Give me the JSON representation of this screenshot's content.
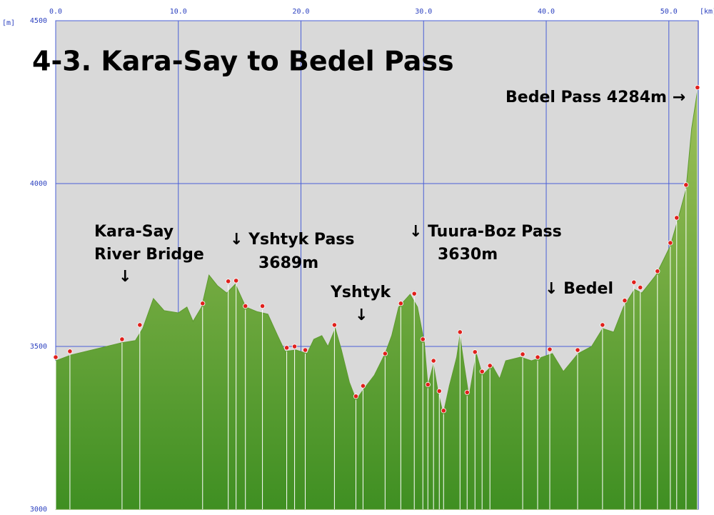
{
  "chart_data": {
    "type": "area",
    "title": "4-3. Kara-Say to Bedel Pass",
    "x_label": "[km]",
    "y_label": "[m]",
    "xlim": [
      0,
      52.4
    ],
    "ylim": [
      3000,
      4500
    ],
    "xticks": [
      {
        "value": 0,
        "label": "0.0"
      },
      {
        "value": 10,
        "label": "10.0"
      },
      {
        "value": 20,
        "label": "20.0"
      },
      {
        "value": 30,
        "label": "30.0"
      },
      {
        "value": 40,
        "label": "40.0"
      },
      {
        "value": 50,
        "label": "50.0"
      }
    ],
    "yticks": [
      3000,
      3500,
      4000,
      4500
    ],
    "grid": true,
    "series": [
      {
        "color": "#6fa83a",
        "x": [
          0,
          1.28,
          5.35,
          6.5,
          7.1,
          7.97,
          8.84,
          10,
          10.7,
          11.2,
          11.9,
          12.5,
          13.2,
          13.95,
          14.65,
          15.5,
          16.4,
          17.3,
          18.1,
          18.7,
          19.6,
          20.5,
          21.05,
          21.7,
          22.2,
          22.8,
          23.3,
          23.95,
          24.5,
          25.1,
          25.99,
          26.86,
          27.4,
          27.97,
          28.9,
          29.5,
          30.06,
          30.35,
          30.8,
          31.2,
          31.6,
          32.1,
          32.7,
          32.96,
          33.3,
          33.7,
          34.3,
          34.8,
          35.6,
          36.2,
          36.7,
          37.9,
          38.8,
          39.65,
          40.5,
          41.4,
          42.6,
          43.7,
          44.6,
          45.5,
          46.3,
          47.2,
          47.8,
          48.95,
          50.1,
          50.7,
          51.4,
          51.86,
          52.33
        ],
        "values": [
          3456,
          3474,
          3511,
          3518,
          3555,
          3647,
          3610,
          3603,
          3621,
          3577,
          3621,
          3719,
          3686,
          3664,
          3691,
          3621,
          3607,
          3599,
          3533,
          3485,
          3489,
          3478,
          3522,
          3533,
          3500,
          3555,
          3489,
          3390,
          3336,
          3368,
          3412,
          3478,
          3533,
          3621,
          3660,
          3621,
          3511,
          3379,
          3445,
          3357,
          3292,
          3379,
          3467,
          3533,
          3445,
          3346,
          3478,
          3412,
          3441,
          3401,
          3456,
          3467,
          3456,
          3467,
          3478,
          3423,
          3478,
          3500,
          3555,
          3544,
          3621,
          3675,
          3664,
          3719,
          3807,
          3884,
          3982,
          4169,
          4284
        ]
      },
      {
        "type": "scatter",
        "color": "#e0201c",
        "x": [
          0,
          1.16,
          5.41,
          6.86,
          11.98,
          14.07,
          14.71,
          15.47,
          16.86,
          18.84,
          19.48,
          20.35,
          22.73,
          24.48,
          25.06,
          26.86,
          28.14,
          29.24,
          29.94,
          30.35,
          30.81,
          31.28,
          31.63,
          32.97,
          33.55,
          34.19,
          34.77,
          35.41,
          38.08,
          39.3,
          40.29,
          42.56,
          44.59,
          46.4,
          47.15,
          47.67,
          49.07,
          50.12,
          50.64,
          51.4,
          52.33
        ],
        "values": [
          3456,
          3474,
          3511,
          3555,
          3621,
          3689,
          3691,
          3613,
          3613,
          3485,
          3489,
          3478,
          3555,
          3336,
          3368,
          3467,
          3621,
          3651,
          3511,
          3372,
          3445,
          3352,
          3292,
          3533,
          3348,
          3472,
          3412,
          3430,
          3465,
          3456,
          3480,
          3478,
          3555,
          3630,
          3686,
          3670,
          3720,
          3807,
          3884,
          3985,
          4284
        ]
      }
    ],
    "annotations": [
      [
        "Kara-Say",
        "River Bridge",
        "↓"
      ],
      [
        "↓ Yshtyk Pass",
        "3689m"
      ],
      [
        "Yshtyk",
        "↓"
      ],
      [
        "↓ Tuura-Boz Pass",
        "3630m"
      ],
      [
        "↓ Bedel"
      ],
      [
        "Bedel Pass 4284m →"
      ]
    ]
  }
}
